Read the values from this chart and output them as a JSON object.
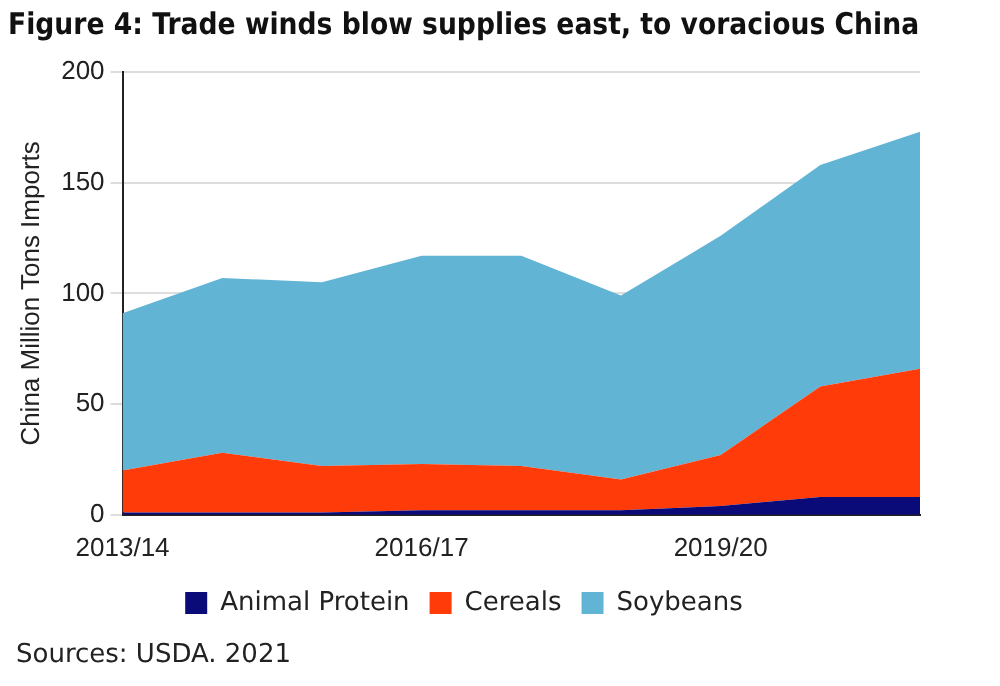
{
  "chart_data": {
    "type": "area",
    "title": "Figure 4: Trade winds blow supplies east, to voracious China",
    "ylabel": "China Million Tons Imports",
    "categories": [
      "2013/14",
      null,
      null,
      "2016/17",
      null,
      null,
      "2019/20",
      null,
      null
    ],
    "series": [
      {
        "name": "Animal Protein",
        "color": "#0a0a78",
        "values": [
          1,
          1,
          1,
          2,
          2,
          2,
          4,
          8,
          8
        ]
      },
      {
        "name": "Cereals",
        "color": "#ff3b0a",
        "values": [
          19,
          27,
          21,
          21,
          20,
          14,
          23,
          50,
          58
        ]
      },
      {
        "name": "Soybeans",
        "color": "#62b4d4",
        "values": [
          71,
          79,
          83,
          94,
          95,
          83,
          99,
          100,
          107
        ]
      }
    ],
    "stacked": true,
    "ylim": [
      0,
      200
    ],
    "yticks": [
      0,
      50,
      100,
      150,
      200
    ],
    "grid": "y",
    "legend": "bottom",
    "annotations": [
      "Sources: USDA. 2021"
    ]
  }
}
